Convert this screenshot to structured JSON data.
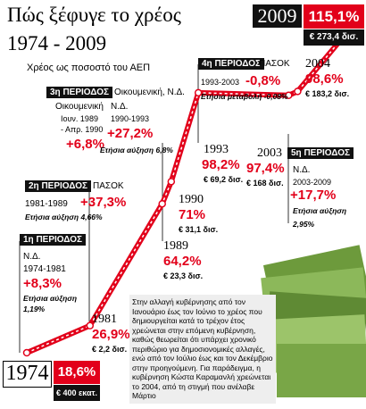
{
  "chart_data": {
    "type": "line",
    "title": "Πώς ξέφυγε το χρέος",
    "title_years": "1974 - 2009",
    "subtitle": "Χρέος ως ποσοστό του ΑΕΠ",
    "x": [
      1974,
      1981,
      1989,
      1990,
      1993,
      2003,
      2004,
      2009
    ],
    "values": [
      18.6,
      26.9,
      64.2,
      71,
      98.2,
      97.4,
      98.6,
      115.1
    ],
    "value_labels": [
      "18,6%",
      "26,9%",
      "64,2%",
      "71%",
      "98,2%",
      "97,4%",
      "98,6%",
      "115,1%"
    ],
    "amounts": [
      "€ 400 εκατ.",
      "€ 2,2 δισ.",
      "€ 23,3 δισ.",
      "€ 31,1 δισ.",
      "€ 69,2 δισ.",
      "€ 168 δισ.",
      "€ 183,2 δισ.",
      "€ 273,4 δισ."
    ],
    "color": "#e2001a",
    "periods": [
      {
        "header": "1η ΠΕΡΙΟΔΟΣ",
        "party": "Ν.Δ.",
        "span": "1974-1981",
        "change": "+8,3%",
        "rate_label": "Ετήσια αύξηση",
        "rate": "1,19%"
      },
      {
        "header": "2η ΠΕΡΙΟΔΟΣ",
        "party": "ΠΑΣΟΚ",
        "span": "1981-1989",
        "change": "+37,3%",
        "rate": "Ετήσια αύξηση 4,66%"
      },
      {
        "header": "3η ΠΕΡΙΟΔΟΣ",
        "party": "Οικουμενική, Ν.Δ.",
        "left": {
          "party": "Οικουμενική",
          "span1": "Ιουν. 1989",
          "span2": "- Απρ. 1990",
          "change": "+6,8%"
        },
        "right": {
          "party": "Ν.Δ.",
          "span": "1990-1993",
          "change": "+27,2%",
          "rate": "Ετήσια αύξηση 6,8%"
        }
      },
      {
        "header": "4η ΠΕΡΙΟΔΟΣ",
        "party": "ΠΑΣΟΚ",
        "span": "1993-2003",
        "change": "-0,8%",
        "rate": "Ετήσια μεταβολή -0,08%"
      },
      {
        "header": "5η ΠΕΡΙΟΔΟΣ",
        "party": "Ν.Δ.",
        "span": "2003-2009",
        "change": "+17,7%",
        "rate_label": "Ετήσια αύξηση",
        "rate": "2,95%"
      }
    ],
    "note": "Στην αλλαγή κυβέρνησης από τον Ιανουάριο έως τον Ιούνιο το χρέος που δημιουργείται κατά το τρέχον έτος χρεώνεται στην επόμενη κυβέρνηση, καθώς θεωρείται ότι υπάρχει χρονικό περιθώριο για δημοσιονομικές αλλαγές, ενώ από τον Ιούλιο έως και τον Δεκέμβριο στην προηγούμενη. Για παράδειγμα, η κυβέρνηση Κώστα Καραμανλή χρεώνεται το 2004, από τη στιγμή που ανέλαβε Μάρτιο"
  }
}
